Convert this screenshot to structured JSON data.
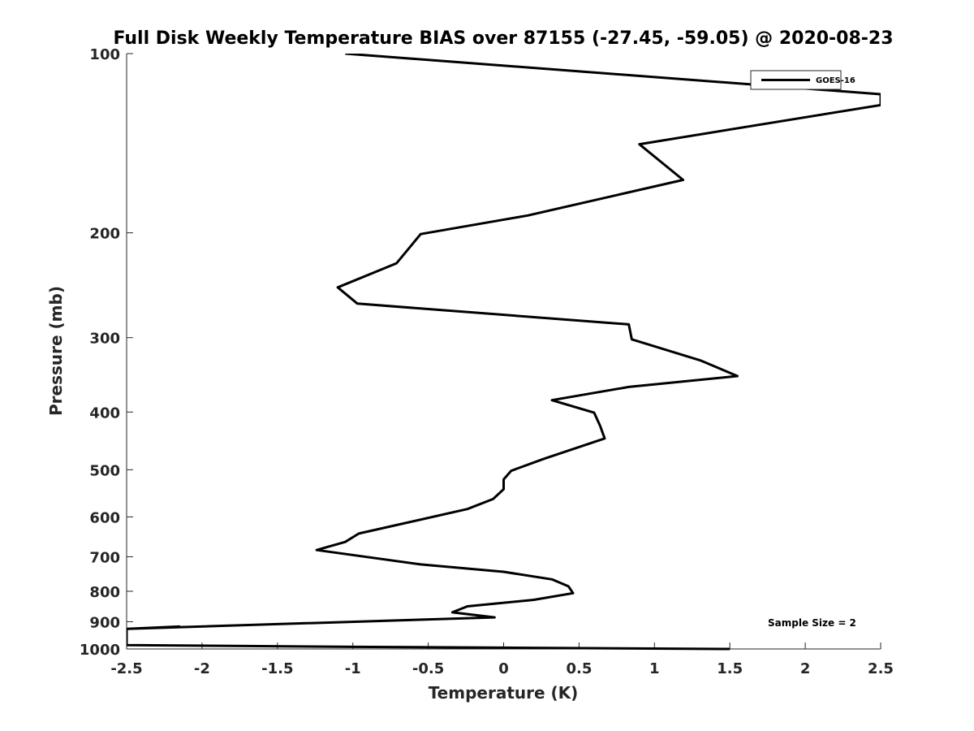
{
  "chart_data": {
    "type": "line",
    "title": "Full Disk Weekly Temperature BIAS over 87155 (-27.45, -59.05) @ 2020-08-23",
    "xlabel": "Temperature (K)",
    "ylabel": "Pressure (mb)",
    "xlim": [
      -2.5,
      2.5
    ],
    "ylim": [
      100,
      1000
    ],
    "yscale": "log",
    "yreversed": true,
    "x_ticks": [
      "-2.5",
      "-2",
      "-1.5",
      "-1",
      "-0.5",
      "0",
      "0.5",
      "1",
      "1.5",
      "2",
      "2.5"
    ],
    "x_tick_values": [
      -2.5,
      -2,
      -1.5,
      -1,
      -0.5,
      0,
      0.5,
      1,
      1.5,
      2,
      2.5
    ],
    "y_ticks": [
      "100",
      "200",
      "300",
      "400",
      "500",
      "600",
      "700",
      "800",
      "900",
      "1000"
    ],
    "y_tick_values": [
      100,
      200,
      300,
      400,
      500,
      600,
      700,
      800,
      900,
      1000
    ],
    "legend": {
      "entries": [
        "GOES-16"
      ],
      "location": "top-right"
    },
    "annotation": "Sample Size = 2",
    "series": [
      {
        "name": "GOES-16",
        "color": "#000000",
        "points": [
          [
            -1.05,
            100
          ],
          [
            2.5,
            117
          ],
          [
            2.5,
            122
          ],
          [
            0.9,
            142
          ],
          [
            1.19,
            163
          ],
          [
            0.16,
            187
          ],
          [
            -0.55,
            201
          ],
          [
            -0.71,
            225
          ],
          [
            -1.1,
            247
          ],
          [
            -0.97,
            263
          ],
          [
            0.83,
            285
          ],
          [
            0.85,
            302
          ],
          [
            1.31,
            328
          ],
          [
            1.55,
            348
          ],
          [
            0.83,
            363
          ],
          [
            0.32,
            382
          ],
          [
            0.6,
            401
          ],
          [
            0.64,
            422
          ],
          [
            0.67,
            443
          ],
          [
            0.27,
            479
          ],
          [
            0.05,
            502
          ],
          [
            0.0,
            519
          ],
          [
            0.0,
            539
          ],
          [
            -0.07,
            560
          ],
          [
            -0.24,
            582
          ],
          [
            -0.96,
            640
          ],
          [
            -1.05,
            661
          ],
          [
            -1.24,
            682
          ],
          [
            -0.55,
            721
          ],
          [
            0.0,
            742
          ],
          [
            0.32,
            764
          ],
          [
            0.43,
            785
          ],
          [
            0.46,
            806
          ],
          [
            0.2,
            827
          ],
          [
            -0.24,
            848
          ],
          [
            -0.34,
            868
          ],
          [
            -0.06,
            885
          ],
          [
            -2.5,
            925
          ],
          [
            -2.15,
            917
          ],
          [
            -2.5,
            925
          ],
          [
            -2.5,
            985
          ],
          [
            -1.0,
            992
          ],
          [
            0.0,
            995
          ],
          [
            1.5,
            1000
          ]
        ]
      }
    ]
  }
}
